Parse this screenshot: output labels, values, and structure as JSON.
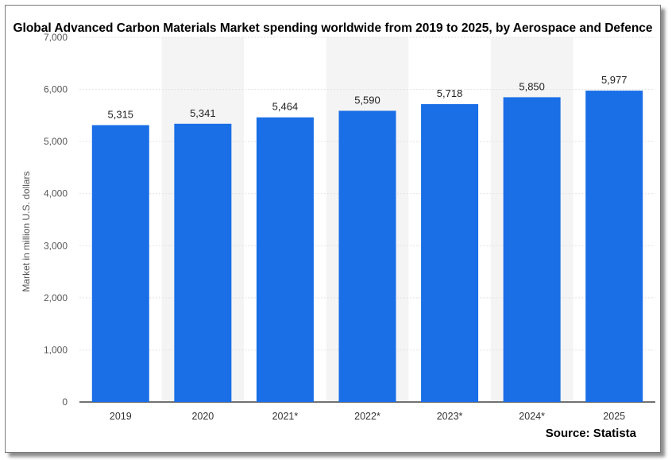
{
  "chart_data": {
    "type": "bar",
    "title": "Global Advanced Carbon Materials Market spending worldwide from 2019 to 2025, by Aerospace and Defence",
    "xlabel": "",
    "ylabel": "Market in million U.S. dollars",
    "categories": [
      "2019",
      "2020",
      "2021*",
      "2022*",
      "2023*",
      "2024*",
      "2025"
    ],
    "values": [
      5315,
      5341,
      5464,
      5590,
      5718,
      5850,
      5977
    ],
    "value_labels": [
      "5,315",
      "5,341",
      "5,464",
      "5,590",
      "5,718",
      "5,850",
      "5,977"
    ],
    "ylim": [
      0,
      7000
    ],
    "yticks": [
      0,
      1000,
      2000,
      3000,
      4000,
      5000,
      6000,
      7000
    ],
    "ytick_labels": [
      "0",
      "1,000",
      "2,000",
      "3,000",
      "4,000",
      "5,000",
      "6,000",
      "7,000"
    ],
    "grid": true,
    "legend": "none",
    "bar_color": "#1a6ee6",
    "source": "Source: Statista"
  }
}
